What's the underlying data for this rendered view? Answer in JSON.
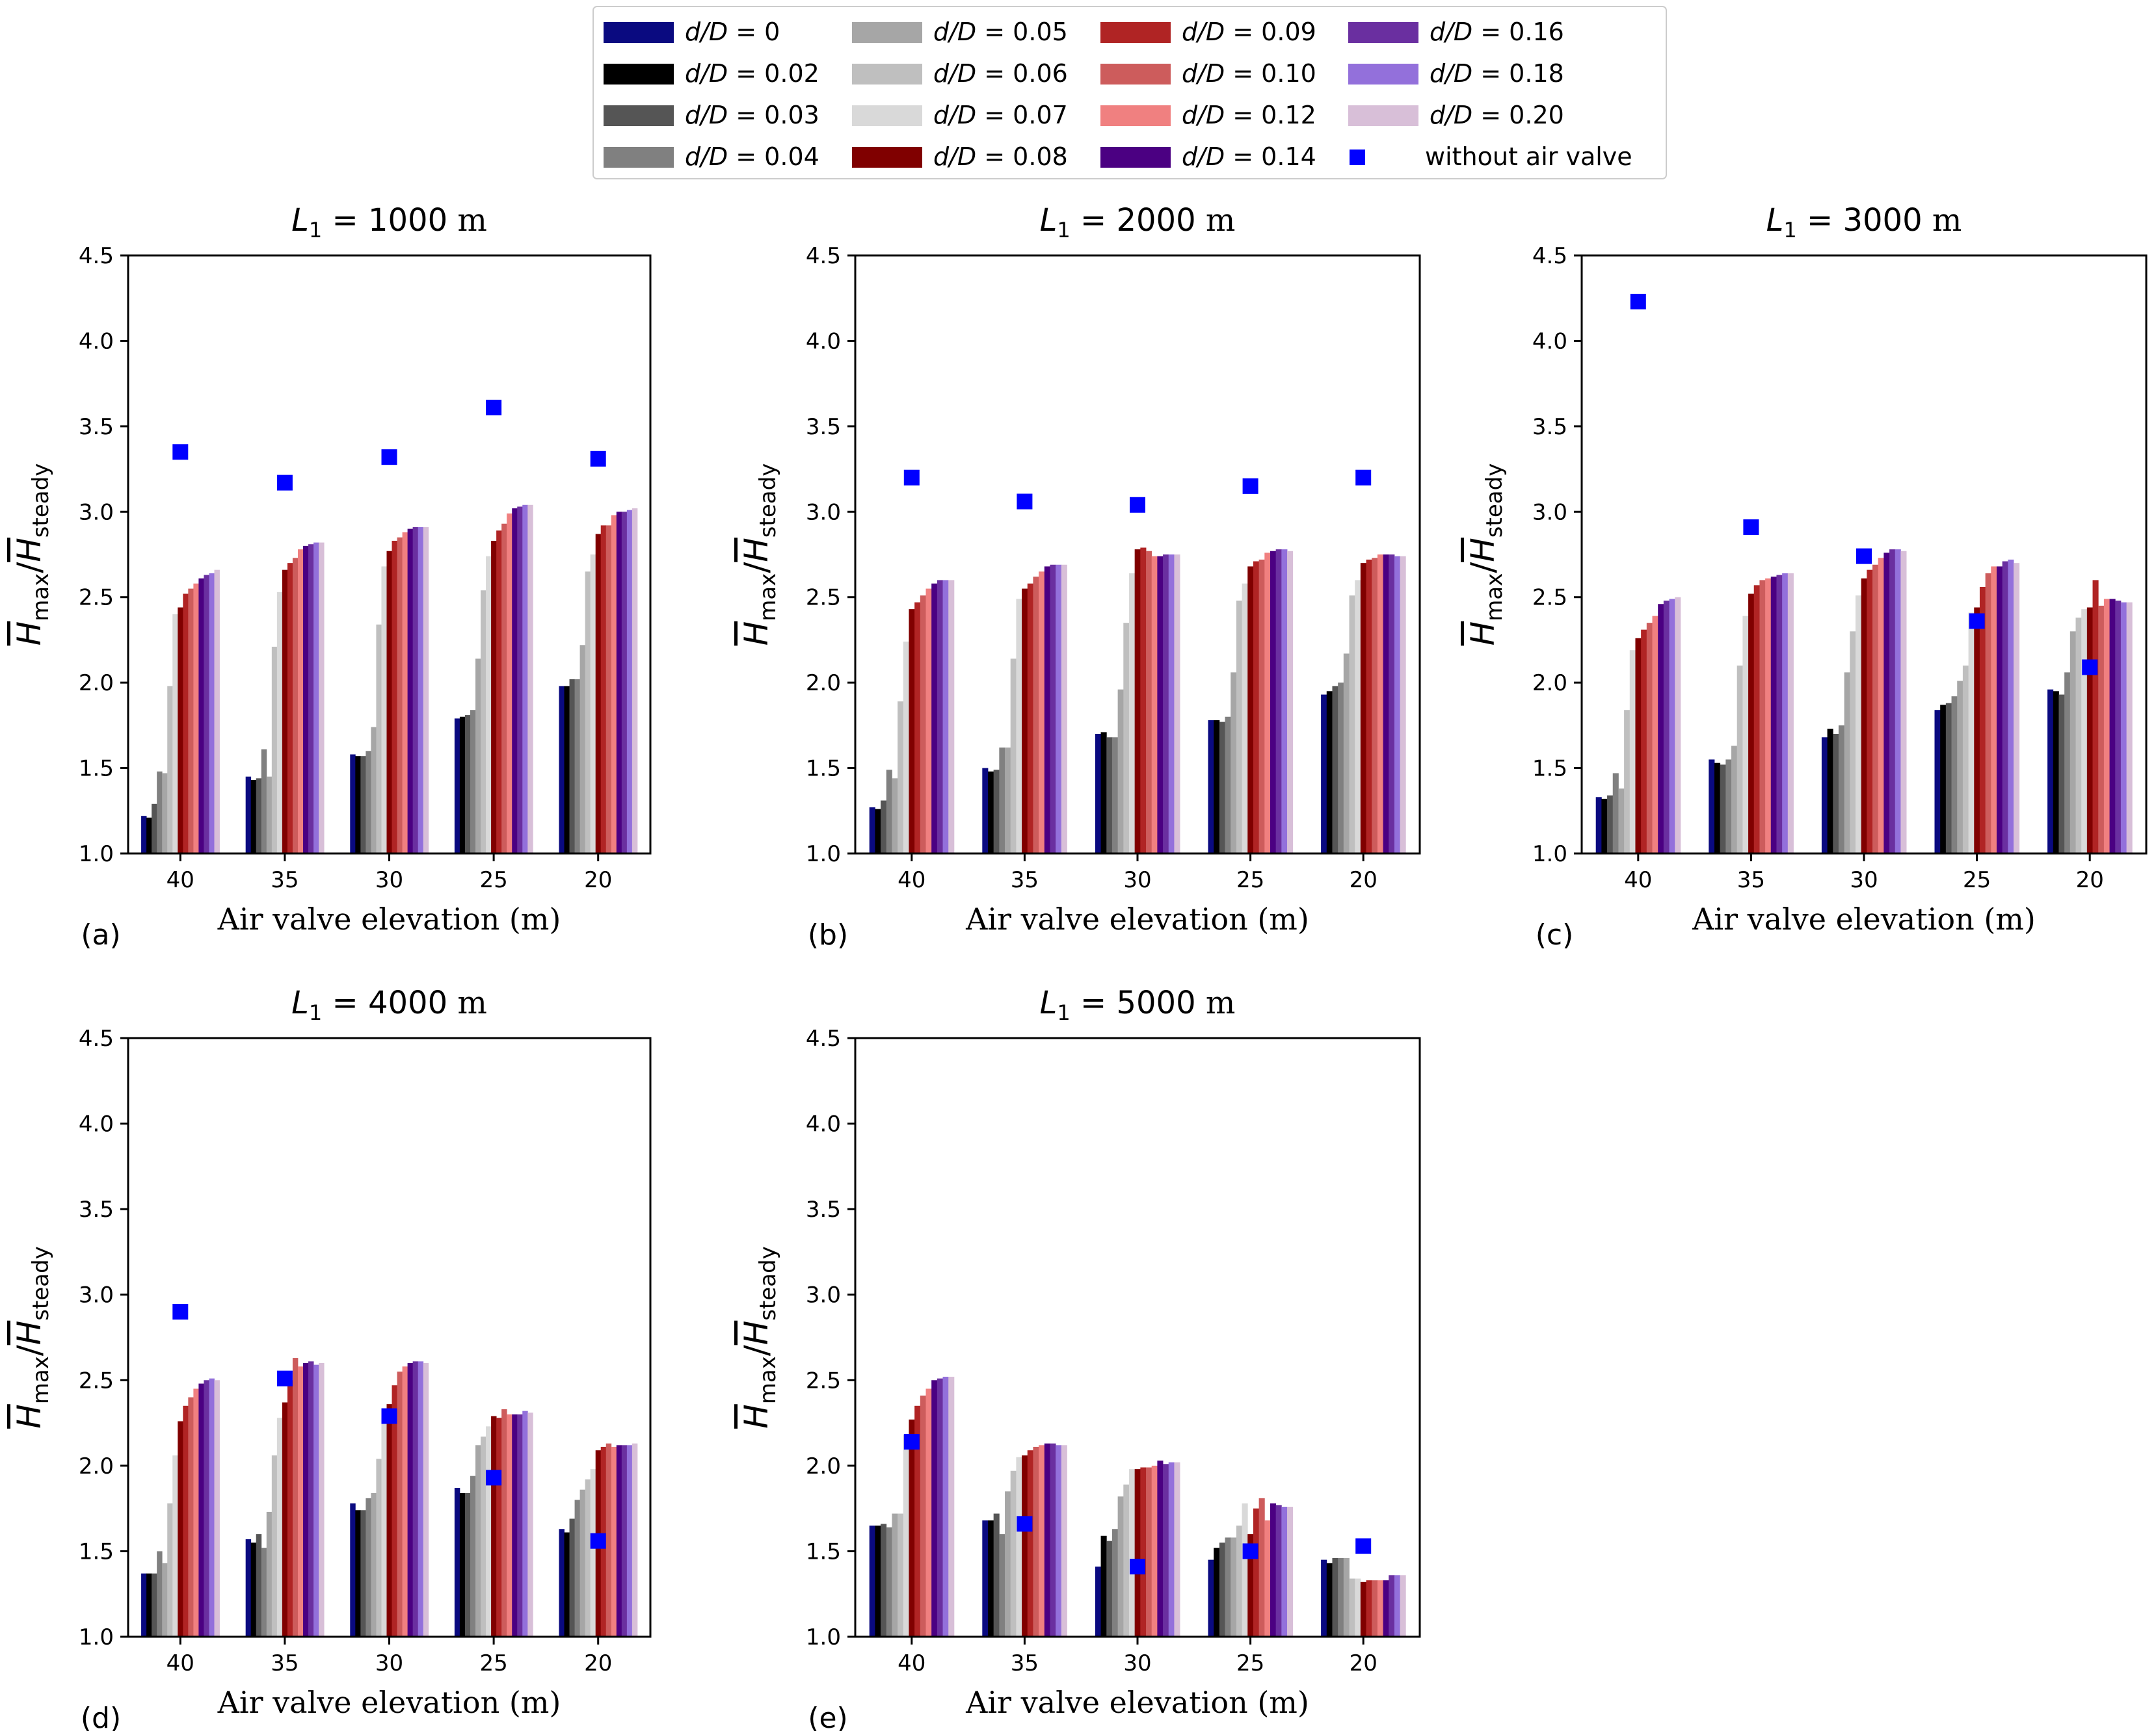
{
  "figure": {
    "series_names": [
      "d/D = 0",
      "d/D = 0.02",
      "d/D = 0.03",
      "d/D = 0.04",
      "d/D = 0.05",
      "d/D = 0.06",
      "d/D = 0.07",
      "d/D = 0.08",
      "d/D = 0.09",
      "d/D = 0.10",
      "d/D = 0.12",
      "d/D = 0.14",
      "d/D = 0.16",
      "d/D = 0.18",
      "d/D = 0.20"
    ],
    "legend": {
      "entries": [
        {
          "prefix": "d/D",
          "value": " = 0",
          "color": "#0a0a80"
        },
        {
          "prefix": "d/D",
          "value": " = 0.02",
          "color": "#000000"
        },
        {
          "prefix": "d/D",
          "value": " = 0.03",
          "color": "#555555"
        },
        {
          "prefix": "d/D",
          "value": " = 0.04",
          "color": "#808080"
        },
        {
          "prefix": "d/D",
          "value": " = 0.05",
          "color": "#a6a6a6"
        },
        {
          "prefix": "d/D",
          "value": " = 0.06",
          "color": "#bfbfbf"
        },
        {
          "prefix": "d/D",
          "value": " = 0.07",
          "color": "#d9d9d9"
        },
        {
          "prefix": "d/D",
          "value": " = 0.08",
          "color": "#800000"
        },
        {
          "prefix": "d/D",
          "value": " = 0.09",
          "color": "#b02424"
        },
        {
          "prefix": "d/D",
          "value": " = 0.10",
          "color": "#cd5c5c"
        },
        {
          "prefix": "d/D",
          "value": " = 0.12",
          "color": "#f08080"
        },
        {
          "prefix": "d/D",
          "value": " = 0.14",
          "color": "#4b0082"
        },
        {
          "prefix": "d/D",
          "value": " = 0.16",
          "color": "#6a2fa0"
        },
        {
          "prefix": "d/D",
          "value": " = 0.18",
          "color": "#9370db"
        },
        {
          "prefix": "d/D",
          "value": " = 0.20",
          "color": "#d8bfd8"
        }
      ],
      "marker_label": "without air valve",
      "marker_color": "#0000ff"
    }
  },
  "chart_data": [
    {
      "type": "bar",
      "panel_label": "(a)",
      "title_italic": "L",
      "title_sub": "1",
      "title_value": " = 1000",
      "title_unit": " m",
      "xlabel": "Air valve elevation (m)",
      "ylabel_main": "H",
      "ylabel_sub1": "max",
      "ylabel_sub2": "steady",
      "ylim": [
        1.0,
        4.5
      ],
      "yticks": [
        "1.0",
        "1.5",
        "2.0",
        "2.5",
        "3.0",
        "3.5",
        "4.0",
        "4.5"
      ],
      "categories": [
        "40",
        "35",
        "30",
        "25",
        "20"
      ],
      "values": [
        [
          1.22,
          1.21,
          1.29,
          1.48,
          1.47,
          1.98,
          2.4,
          2.44,
          2.52,
          2.55,
          2.58,
          2.61,
          2.63,
          2.64,
          2.66
        ],
        [
          1.45,
          1.43,
          1.44,
          1.61,
          1.45,
          2.21,
          2.53,
          2.66,
          2.7,
          2.73,
          2.78,
          2.8,
          2.81,
          2.82,
          2.82
        ],
        [
          1.58,
          1.57,
          1.57,
          1.6,
          1.74,
          2.34,
          2.68,
          2.77,
          2.83,
          2.85,
          2.88,
          2.9,
          2.91,
          2.91,
          2.91
        ],
        [
          1.79,
          1.8,
          1.81,
          1.84,
          2.14,
          2.54,
          2.74,
          2.83,
          2.89,
          2.93,
          2.99,
          3.02,
          3.03,
          3.04,
          3.04
        ],
        [
          1.98,
          1.98,
          2.02,
          2.02,
          2.22,
          2.65,
          2.75,
          2.87,
          2.92,
          2.92,
          2.98,
          3.0,
          3.0,
          3.01,
          3.02
        ]
      ],
      "without_air_valve": [
        3.35,
        3.17,
        3.32,
        3.61,
        3.31
      ]
    },
    {
      "type": "bar",
      "panel_label": "(b)",
      "title_italic": "L",
      "title_sub": "1",
      "title_value": " = 2000",
      "title_unit": " m",
      "xlabel": "Air valve elevation (m)",
      "ylabel_main": "H",
      "ylabel_sub1": "max",
      "ylabel_sub2": "steady",
      "ylim": [
        1.0,
        4.5
      ],
      "yticks": [
        "1.0",
        "1.5",
        "2.0",
        "2.5",
        "3.0",
        "3.5",
        "4.0",
        "4.5"
      ],
      "categories": [
        "40",
        "35",
        "30",
        "25",
        "20"
      ],
      "values": [
        [
          1.27,
          1.26,
          1.31,
          1.49,
          1.44,
          1.89,
          2.24,
          2.43,
          2.47,
          2.51,
          2.55,
          2.58,
          2.6,
          2.6,
          2.6
        ],
        [
          1.5,
          1.48,
          1.49,
          1.62,
          1.62,
          2.14,
          2.49,
          2.55,
          2.58,
          2.62,
          2.65,
          2.68,
          2.69,
          2.69,
          2.69
        ],
        [
          1.7,
          1.71,
          1.68,
          1.68,
          1.96,
          2.35,
          2.64,
          2.78,
          2.79,
          2.77,
          2.74,
          2.74,
          2.75,
          2.75,
          2.75
        ],
        [
          1.78,
          1.78,
          1.77,
          1.8,
          2.06,
          2.48,
          2.58,
          2.68,
          2.71,
          2.72,
          2.76,
          2.77,
          2.78,
          2.78,
          2.77
        ],
        [
          1.93,
          1.95,
          1.98,
          2.0,
          2.17,
          2.51,
          2.6,
          2.7,
          2.72,
          2.73,
          2.75,
          2.75,
          2.75,
          2.74,
          2.74
        ]
      ],
      "without_air_valve": [
        3.2,
        3.06,
        3.04,
        3.15,
        3.2
      ]
    },
    {
      "type": "bar",
      "panel_label": "(c)",
      "title_italic": "L",
      "title_sub": "1",
      "title_value": " = 3000",
      "title_unit": " m",
      "xlabel": "Air valve elevation (m)",
      "ylabel_main": "H",
      "ylabel_sub1": "max",
      "ylabel_sub2": "steady",
      "ylim": [
        1.0,
        4.5
      ],
      "yticks": [
        "1.0",
        "1.5",
        "2.0",
        "2.5",
        "3.0",
        "3.5",
        "4.0",
        "4.5"
      ],
      "categories": [
        "40",
        "35",
        "30",
        "25",
        "20"
      ],
      "values": [
        [
          1.33,
          1.32,
          1.34,
          1.47,
          1.38,
          1.84,
          2.19,
          2.26,
          2.31,
          2.35,
          2.39,
          2.46,
          2.48,
          2.49,
          2.5
        ],
        [
          1.55,
          1.53,
          1.52,
          1.55,
          1.63,
          2.1,
          2.39,
          2.52,
          2.57,
          2.6,
          2.61,
          2.62,
          2.63,
          2.64,
          2.64
        ],
        [
          1.68,
          1.73,
          1.7,
          1.75,
          2.06,
          2.3,
          2.51,
          2.61,
          2.66,
          2.69,
          2.73,
          2.76,
          2.78,
          2.78,
          2.77
        ],
        [
          1.84,
          1.87,
          1.88,
          1.92,
          2.01,
          2.1,
          2.41,
          2.44,
          2.56,
          2.64,
          2.68,
          2.68,
          2.71,
          2.72,
          2.7
        ],
        [
          1.96,
          1.95,
          1.93,
          2.06,
          2.3,
          2.38,
          2.43,
          2.44,
          2.6,
          2.45,
          2.49,
          2.49,
          2.48,
          2.47,
          2.47
        ]
      ],
      "without_air_valve": [
        4.23,
        2.91,
        2.74,
        2.36,
        2.09
      ]
    },
    {
      "type": "bar",
      "panel_label": "(d)",
      "title_italic": "L",
      "title_sub": "1",
      "title_value": " = 4000",
      "title_unit": " m",
      "xlabel": "Air valve elevation (m)",
      "ylabel_main": "H",
      "ylabel_sub1": "max",
      "ylabel_sub2": "steady",
      "ylim": [
        1.0,
        4.5
      ],
      "yticks": [
        "1.0",
        "1.5",
        "2.0",
        "2.5",
        "3.0",
        "3.5",
        "4.0",
        "4.5"
      ],
      "categories": [
        "40",
        "35",
        "30",
        "25",
        "20"
      ],
      "values": [
        [
          1.37,
          1.37,
          1.37,
          1.5,
          1.43,
          1.78,
          2.06,
          2.26,
          2.35,
          2.4,
          2.45,
          2.48,
          2.5,
          2.51,
          2.5
        ],
        [
          1.57,
          1.55,
          1.6,
          1.52,
          1.73,
          2.06,
          2.28,
          2.37,
          2.5,
          2.63,
          2.58,
          2.6,
          2.61,
          2.59,
          2.6
        ],
        [
          1.78,
          1.74,
          1.74,
          1.81,
          1.84,
          2.04,
          2.28,
          2.36,
          2.47,
          2.55,
          2.58,
          2.6,
          2.61,
          2.61,
          2.6
        ],
        [
          1.87,
          1.84,
          1.84,
          1.94,
          2.12,
          2.17,
          2.23,
          2.29,
          2.28,
          2.33,
          2.3,
          2.3,
          2.3,
          2.32,
          2.31
        ],
        [
          1.63,
          1.61,
          1.69,
          1.8,
          1.86,
          1.92,
          1.98,
          2.09,
          2.11,
          2.13,
          2.11,
          2.12,
          2.12,
          2.12,
          2.13
        ]
      ],
      "without_air_valve": [
        2.9,
        2.51,
        2.29,
        1.93,
        1.56
      ]
    },
    {
      "type": "bar",
      "panel_label": "(e)",
      "title_italic": "L",
      "title_sub": "1",
      "title_value": " = 5000",
      "title_unit": " m",
      "xlabel": "Air valve elevation (m)",
      "ylabel_main": "H",
      "ylabel_sub1": "max",
      "ylabel_sub2": "steady",
      "ylim": [
        1.0,
        4.5
      ],
      "yticks": [
        "1.0",
        "1.5",
        "2.0",
        "2.5",
        "3.0",
        "3.5",
        "4.0",
        "4.5"
      ],
      "categories": [
        "40",
        "35",
        "30",
        "25",
        "20"
      ],
      "values": [
        [
          1.65,
          1.65,
          1.66,
          1.64,
          1.72,
          1.72,
          2.18,
          2.27,
          2.35,
          2.41,
          2.45,
          2.5,
          2.51,
          2.52,
          2.52
        ],
        [
          1.68,
          1.68,
          1.72,
          1.6,
          1.85,
          1.97,
          2.05,
          2.06,
          2.09,
          2.11,
          2.12,
          2.13,
          2.13,
          2.12,
          2.12
        ],
        [
          1.41,
          1.59,
          1.56,
          1.63,
          1.82,
          1.89,
          1.98,
          1.98,
          1.99,
          1.99,
          2.0,
          2.03,
          2.01,
          2.02,
          2.02
        ],
        [
          1.45,
          1.52,
          1.55,
          1.58,
          1.58,
          1.65,
          1.78,
          1.6,
          1.75,
          1.81,
          1.68,
          1.78,
          1.77,
          1.76,
          1.76
        ],
        [
          1.45,
          1.43,
          1.46,
          1.46,
          1.46,
          1.34,
          1.34,
          1.32,
          1.33,
          1.33,
          1.33,
          1.33,
          1.36,
          1.36,
          1.36
        ]
      ],
      "without_air_valve": [
        2.14,
        1.66,
        1.41,
        1.5,
        1.53
      ]
    }
  ]
}
